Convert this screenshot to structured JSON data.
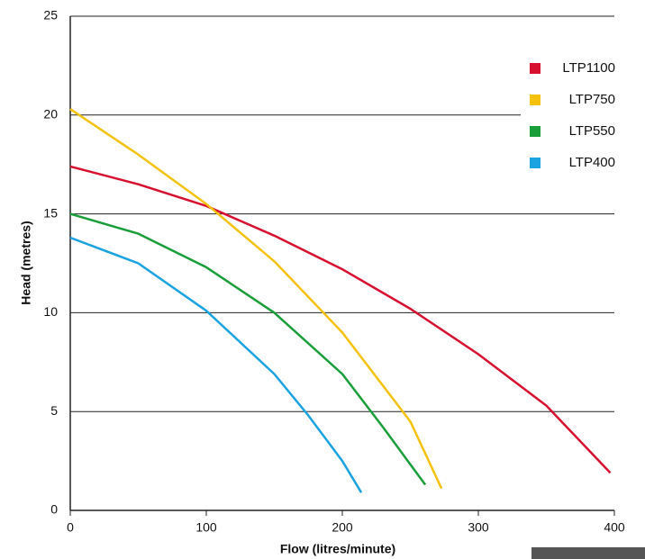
{
  "chart_data": {
    "type": "line",
    "xlabel": "Flow (litres/minute)",
    "ylabel": "Head (metres)",
    "xlim": [
      0,
      400
    ],
    "xticks": [
      0,
      100,
      200,
      300,
      400
    ],
    "ylim": [
      0,
      25
    ],
    "yticks": [
      0,
      5,
      10,
      15,
      20,
      25
    ],
    "grid": true,
    "legend": "upper right",
    "series": [
      {
        "name": "LTP1100",
        "color": "#d7102f",
        "x": [
          0,
          50,
          100,
          150,
          200,
          250,
          300,
          350,
          397
        ],
        "values": [
          17.4,
          16.5,
          15.4,
          13.9,
          12.2,
          10.2,
          7.9,
          5.3,
          1.9
        ]
      },
      {
        "name": "LTP750",
        "color": "#f4c20d",
        "x": [
          0,
          50,
          100,
          150,
          200,
          250,
          273
        ],
        "values": [
          20.3,
          18.0,
          15.5,
          12.6,
          9.0,
          4.5,
          1.1
        ]
      },
      {
        "name": "LTP550",
        "color": "#1a9e3a",
        "x": [
          0,
          50,
          100,
          150,
          200,
          230,
          261
        ],
        "values": [
          15.0,
          14.0,
          12.3,
          10.0,
          6.9,
          4.2,
          1.3
        ]
      },
      {
        "name": "LTP400",
        "color": "#1aa3e0",
        "x": [
          0,
          50,
          100,
          150,
          175,
          200,
          214
        ],
        "values": [
          13.8,
          12.5,
          10.1,
          6.9,
          4.8,
          2.5,
          0.9
        ]
      }
    ]
  }
}
